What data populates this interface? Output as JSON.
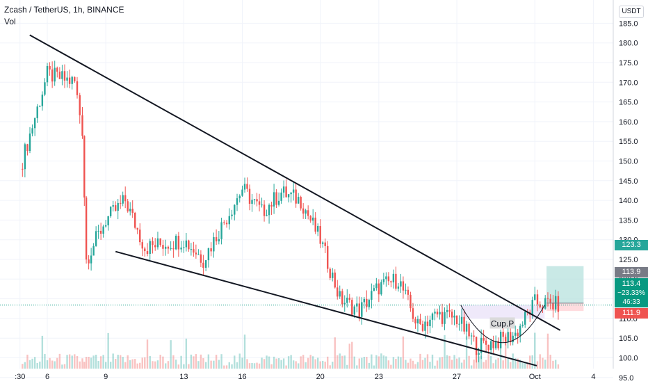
{
  "header": {
    "symbol_line": "Zcash / TetherUS, 1h, BINANCE",
    "indicator": "Vol"
  },
  "right_axis": {
    "currency_button": "USDT",
    "ticks": [
      "185.0",
      "180.0",
      "175.0",
      "170.0",
      "165.0",
      "160.0",
      "155.0",
      "150.0",
      "145.0",
      "140.0",
      "135.0",
      "130.0",
      "125.0",
      "120.0",
      "115.0",
      "110.0",
      "105.0",
      "100.0",
      "95.0"
    ]
  },
  "bottom_axis": {
    "ticks": [
      ":30",
      "6",
      "9",
      "13",
      "16",
      "20",
      "23",
      "27",
      "Oct",
      "4"
    ]
  },
  "price_labels": {
    "target": "123.3",
    "entry": "113.9",
    "current": "113.4",
    "change": "−23.33%",
    "countdown": "46:33",
    "stop": "111.9"
  },
  "annotation": {
    "pattern": "Cup.P"
  },
  "colors": {
    "up": "#26a69a",
    "down": "#ef5350",
    "line": "#131722",
    "target_zone": "#b2dfdb",
    "stop_zone": "#ffcdd2",
    "current_price": "#089981",
    "entry_box": "#787b86",
    "cup_fill": "#e8e0f8"
  },
  "chart_data": {
    "type": "candlestick",
    "symbol": "Zcash / TetherUS",
    "interval": "1h",
    "exchange": "BINANCE",
    "y_range": [
      93,
      186
    ],
    "approx_price_path": [
      {
        "x": "Sep 5",
        "y": 148
      },
      {
        "x": "Sep 6",
        "y": 172
      },
      {
        "x": "Sep 7",
        "y": 170
      },
      {
        "x": "Sep 7",
        "y": 158
      },
      {
        "x": "Sep 8",
        "y": 125
      },
      {
        "x": "Sep 9",
        "y": 135
      },
      {
        "x": "Sep 10",
        "y": 140
      },
      {
        "x": "Sep 11",
        "y": 128
      },
      {
        "x": "Sep 13",
        "y": 130
      },
      {
        "x": "Sep 14",
        "y": 125
      },
      {
        "x": "Sep 16",
        "y": 143
      },
      {
        "x": "Sep 17",
        "y": 137
      },
      {
        "x": "Sep 18",
        "y": 142
      },
      {
        "x": "Sep 19",
        "y": 140
      },
      {
        "x": "Sep 20",
        "y": 130
      },
      {
        "x": "Sep 21",
        "y": 115
      },
      {
        "x": "Sep 22",
        "y": 112
      },
      {
        "x": "Sep 23",
        "y": 118
      },
      {
        "x": "Sep 24",
        "y": 120
      },
      {
        "x": "Sep 25",
        "y": 108
      },
      {
        "x": "Sep 26",
        "y": 111
      },
      {
        "x": "Sep 27",
        "y": 110
      },
      {
        "x": "Sep 28",
        "y": 103
      },
      {
        "x": "Sep 29",
        "y": 104
      },
      {
        "x": "Sep 30",
        "y": 106
      },
      {
        "x": "Oct 1",
        "y": 114
      },
      {
        "x": "Oct 2",
        "y": 113.4
      }
    ],
    "trendlines": [
      {
        "name": "upper",
        "from": {
          "x": "Sep 5",
          "y": 182
        },
        "to": {
          "x": "Oct 2",
          "y": 107
        }
      },
      {
        "name": "lower",
        "from": {
          "x": "Sep 9",
          "y": 127
        },
        "to": {
          "x": "Oct 1",
          "y": 98
        }
      }
    ],
    "grid": true,
    "legend": "none"
  }
}
